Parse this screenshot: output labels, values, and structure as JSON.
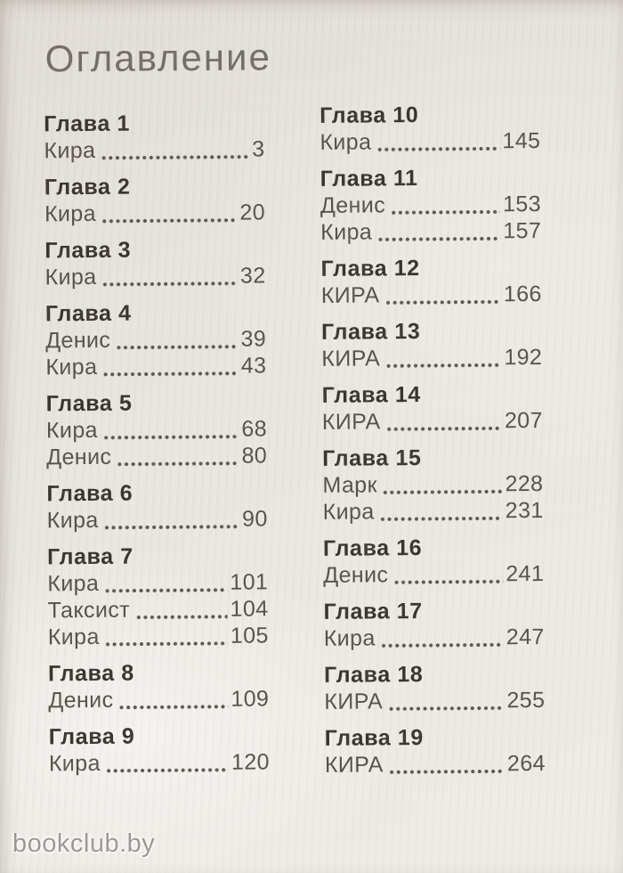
{
  "page_title": "Оглавление",
  "watermark": "bookclub.by",
  "colors": {
    "paper": "#e9e5df",
    "title": "#736d67",
    "heading": "#3a342f",
    "entry": "#57514b",
    "dots": "#5d5751",
    "watermark": "#9d978f"
  },
  "toc": {
    "left_column": [
      {
        "chapter": "Глава 1",
        "entries": [
          {
            "name": "Кира",
            "page": "3"
          }
        ]
      },
      {
        "chapter": "Глава 2",
        "entries": [
          {
            "name": "Кира",
            "page": "20"
          }
        ]
      },
      {
        "chapter": "Глава 3",
        "entries": [
          {
            "name": "Кира",
            "page": "32"
          }
        ]
      },
      {
        "chapter": "Глава 4",
        "entries": [
          {
            "name": "Денис",
            "page": "39"
          },
          {
            "name": "Кира",
            "page": "43"
          }
        ]
      },
      {
        "chapter": "Глава 5",
        "entries": [
          {
            "name": "Кира",
            "page": "68"
          },
          {
            "name": "Денис",
            "page": "80"
          }
        ]
      },
      {
        "chapter": "Глава 6",
        "entries": [
          {
            "name": "Кира",
            "page": "90"
          }
        ]
      },
      {
        "chapter": "Глава 7",
        "entries": [
          {
            "name": "Кира",
            "page": "101"
          },
          {
            "name": "Таксист",
            "page": "104"
          },
          {
            "name": "Кира",
            "page": "105"
          }
        ]
      },
      {
        "chapter": "Глава 8",
        "entries": [
          {
            "name": "Денис",
            "page": "109"
          }
        ]
      },
      {
        "chapter": "Глава 9",
        "entries": [
          {
            "name": "Кира",
            "page": "120"
          }
        ]
      }
    ],
    "right_column": [
      {
        "chapter": "Глава 10",
        "entries": [
          {
            "name": "Кира",
            "page": "145"
          }
        ]
      },
      {
        "chapter": "Глава 11",
        "entries": [
          {
            "name": "Денис",
            "page": "153"
          },
          {
            "name": "Кира",
            "page": "157"
          }
        ]
      },
      {
        "chapter": "Глава 12",
        "entries": [
          {
            "name": "КИРА",
            "page": "166"
          }
        ]
      },
      {
        "chapter": "Глава 13",
        "entries": [
          {
            "name": "КИРА",
            "page": "192"
          }
        ]
      },
      {
        "chapter": "Глава 14",
        "entries": [
          {
            "name": "КИРА",
            "page": "207"
          }
        ]
      },
      {
        "chapter": "Глава 15",
        "entries": [
          {
            "name": "Марк",
            "page": "228"
          },
          {
            "name": "Кира",
            "page": "231"
          }
        ]
      },
      {
        "chapter": "Глава 16",
        "entries": [
          {
            "name": "Денис",
            "page": "241"
          }
        ]
      },
      {
        "chapter": "Глава 17",
        "entries": [
          {
            "name": "Кира",
            "page": "247"
          }
        ]
      },
      {
        "chapter": "Глава 18",
        "entries": [
          {
            "name": "КИРА",
            "page": "255"
          }
        ]
      },
      {
        "chapter": "Глава 19",
        "entries": [
          {
            "name": "КИРА",
            "page": "264"
          }
        ]
      }
    ]
  }
}
